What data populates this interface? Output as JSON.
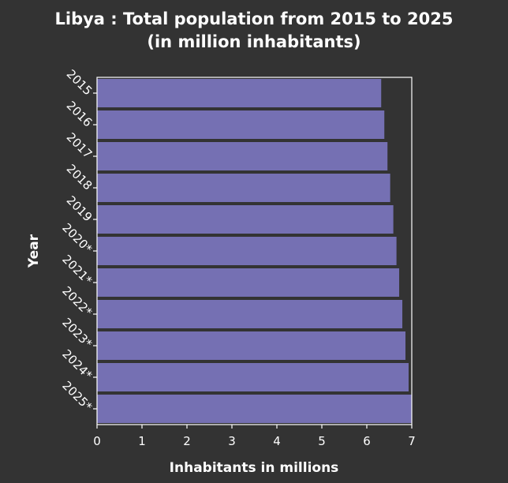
{
  "chart_data": {
    "type": "bar",
    "orientation": "horizontal",
    "title_line1": "Libya : Total population from 2015 to 2025",
    "title_line2": "(in million inhabitants)",
    "xlabel": "Inhabitants in millions",
    "ylabel": "Year",
    "categories": [
      "2015",
      "2016",
      "2017",
      "2018",
      "2019",
      "2020*",
      "2021*",
      "2022*",
      "2023*",
      "2024*",
      "2025*"
    ],
    "values": [
      6.32,
      6.39,
      6.46,
      6.52,
      6.59,
      6.66,
      6.72,
      6.79,
      6.86,
      6.93,
      7.0
    ],
    "xlim": [
      0,
      7
    ],
    "xticks": [
      "0",
      "1",
      "2",
      "3",
      "4",
      "5",
      "6",
      "7"
    ],
    "grid": false,
    "bar_color": "#7570b3",
    "plot_background": "#333333"
  }
}
